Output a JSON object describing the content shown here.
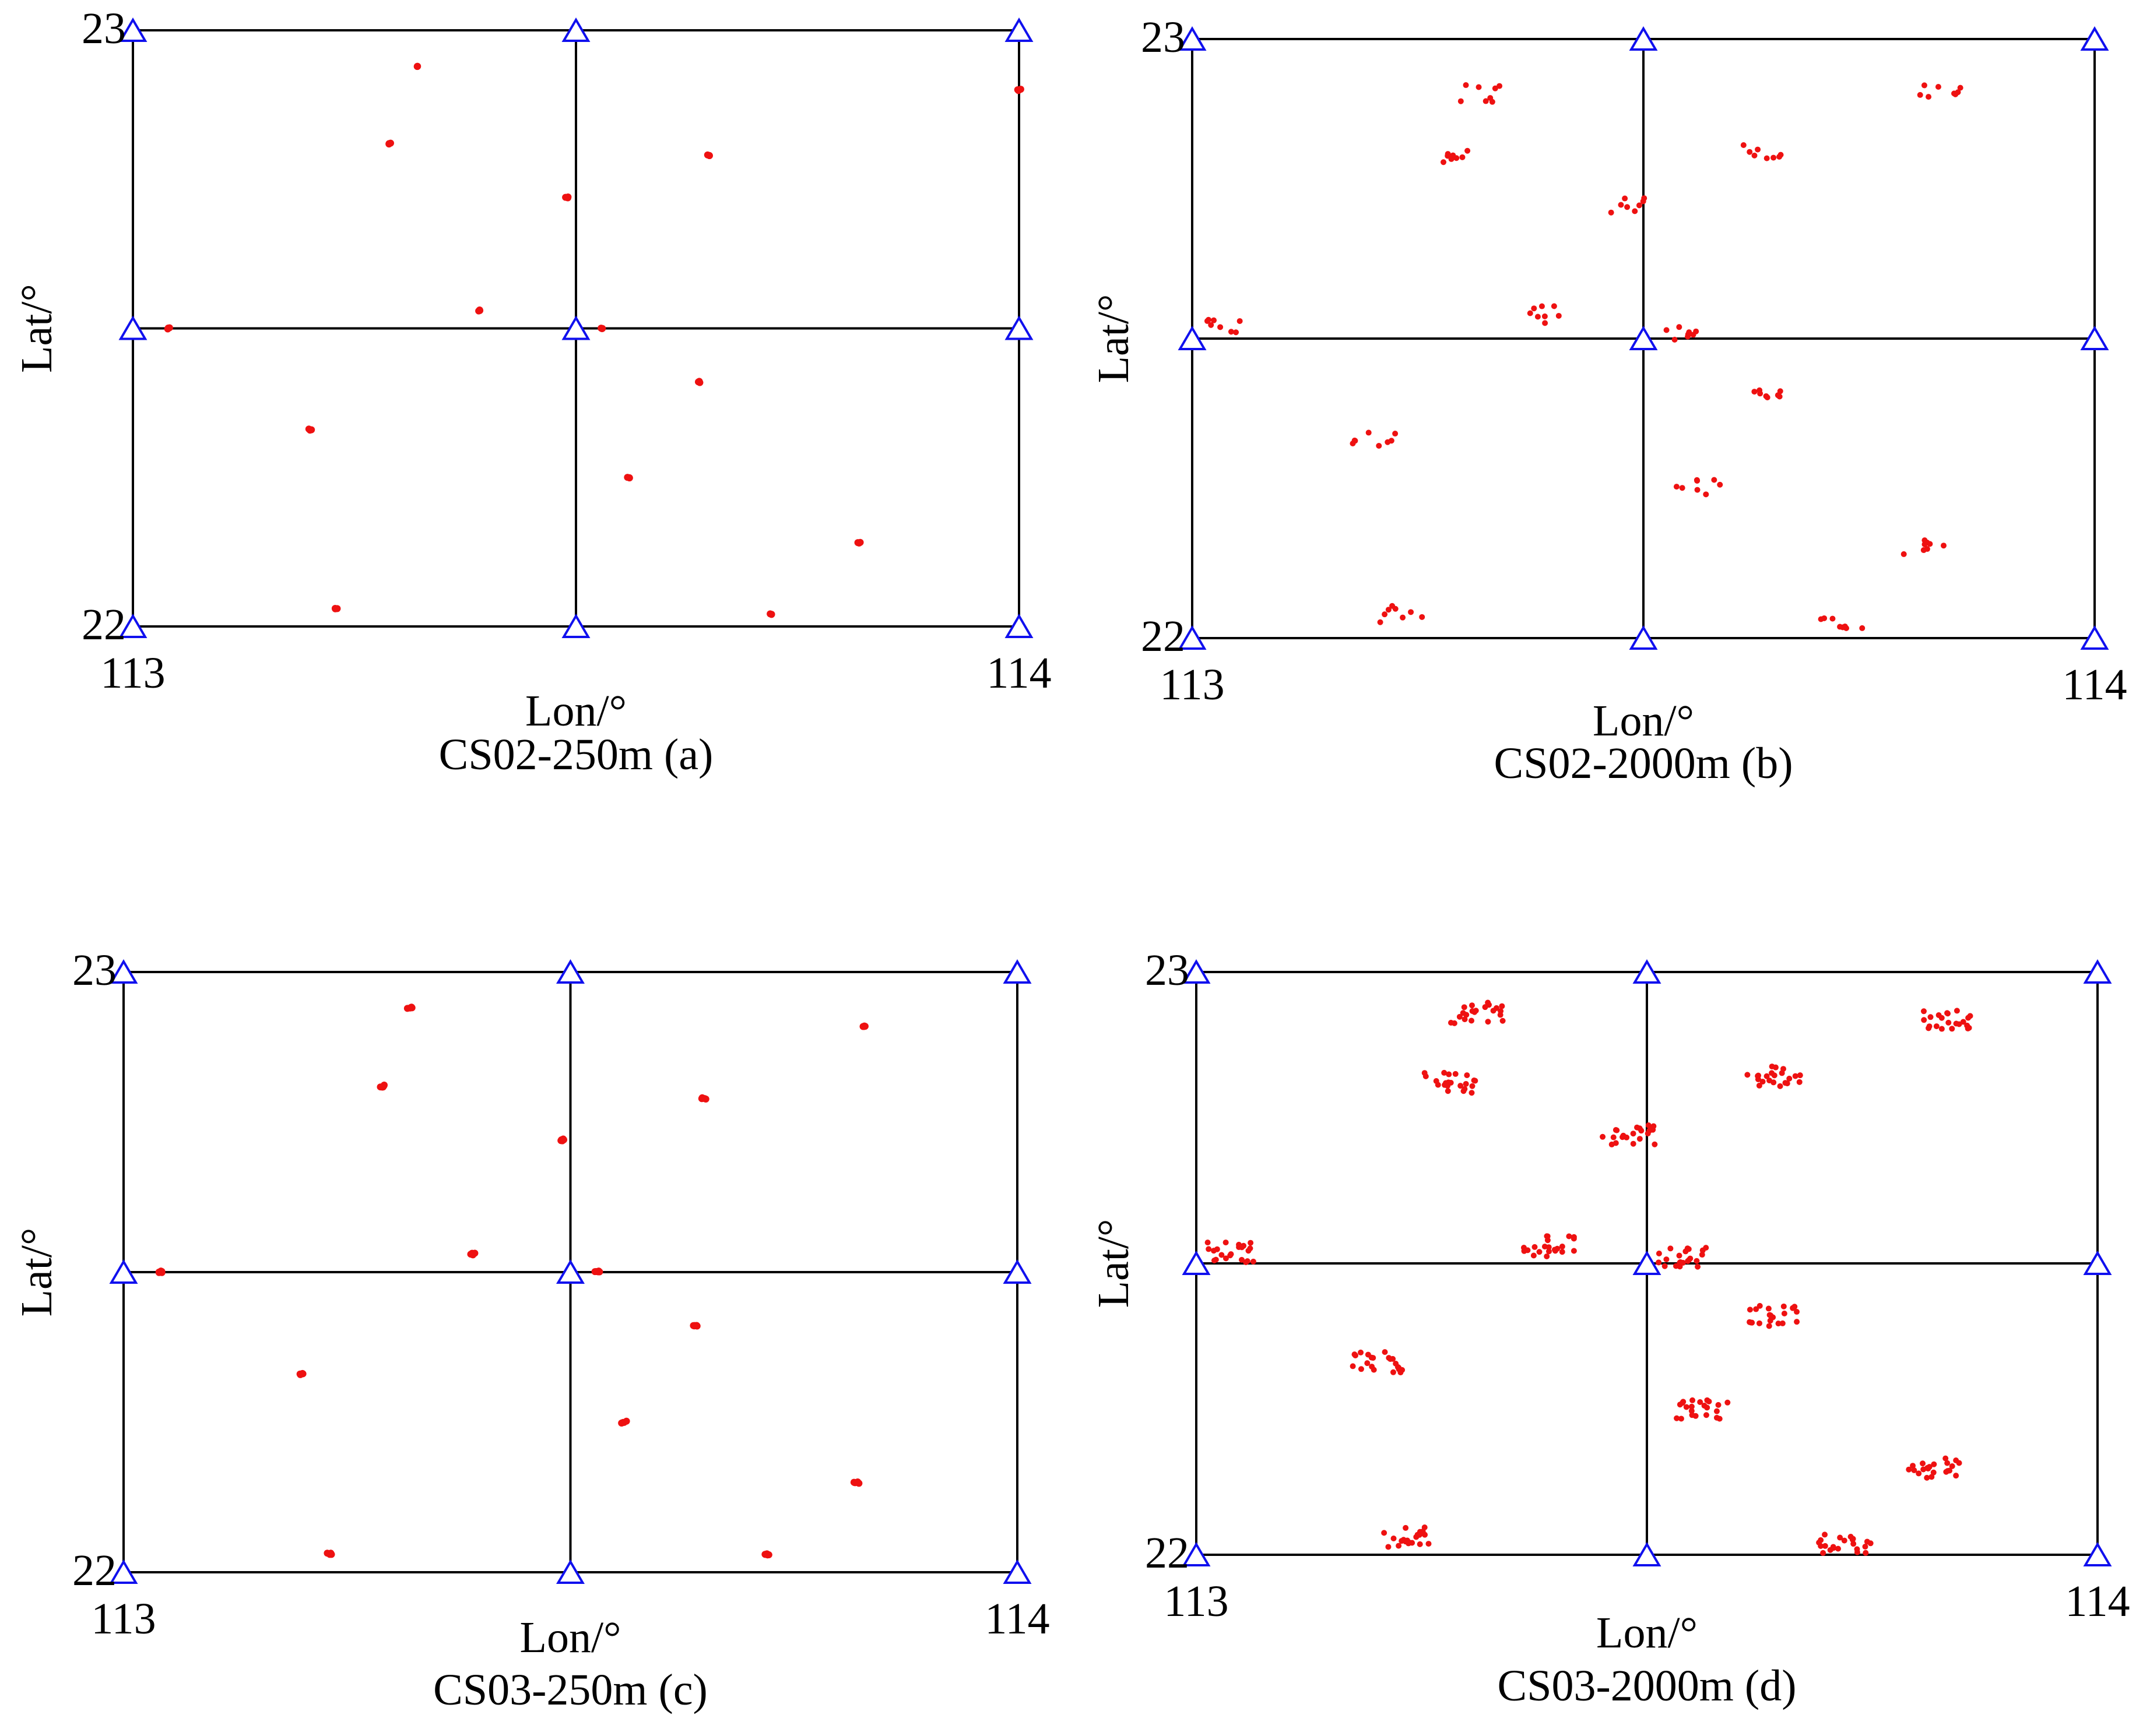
{
  "chart_data": [
    {
      "type": "scatter",
      "caption": "CS02-250m (a)",
      "xlabel": "Lon/°",
      "ylabel": "Lat/°",
      "xlim": [
        113,
        114
      ],
      "ylim": [
        22,
        23
      ],
      "xticks": [
        "113",
        "114"
      ],
      "yticks": [
        "22",
        "23"
      ],
      "grid_lines_lon": [
        113,
        113.5,
        114
      ],
      "grid_lines_lat": [
        22,
        22.5,
        23
      ],
      "stations": [
        [
          113,
          23
        ],
        [
          113.5,
          23
        ],
        [
          114,
          23
        ],
        [
          113,
          22.5
        ],
        [
          113.5,
          22.5
        ],
        [
          114,
          22.5
        ],
        [
          113,
          22
        ],
        [
          113.5,
          22
        ],
        [
          114,
          22
        ]
      ],
      "spread": 0.002,
      "count": 3,
      "clusters": [
        [
          113.32,
          22.94
        ],
        [
          113.29,
          22.81
        ],
        [
          113.49,
          22.72
        ],
        [
          113.04,
          22.5
        ],
        [
          113.39,
          22.53
        ],
        [
          113.53,
          22.5
        ],
        [
          113.65,
          22.79
        ],
        [
          114.0,
          22.9
        ],
        [
          113.2,
          22.33
        ],
        [
          113.64,
          22.41
        ],
        [
          113.56,
          22.25
        ],
        [
          113.82,
          22.14
        ],
        [
          113.23,
          22.03
        ],
        [
          113.72,
          22.02
        ]
      ]
    },
    {
      "type": "scatter",
      "caption": "CS02-2000m (b)",
      "xlabel": "Lon/°",
      "ylabel": "Lat/°",
      "xlim": [
        113,
        114
      ],
      "ylim": [
        22,
        23
      ],
      "xticks": [
        "113",
        "114"
      ],
      "yticks": [
        "22",
        "23"
      ],
      "grid_lines_lon": [
        113,
        113.5,
        114
      ],
      "grid_lines_lat": [
        22,
        22.5,
        23
      ],
      "stations": [
        [
          113,
          23
        ],
        [
          113.5,
          23
        ],
        [
          114,
          23
        ],
        [
          113,
          22.5
        ],
        [
          113.5,
          22.5
        ],
        [
          114,
          22.5
        ],
        [
          113,
          22
        ],
        [
          113.5,
          22
        ],
        [
          114,
          22
        ]
      ],
      "spread": 0.025,
      "count": 8,
      "clusters": [
        [
          113.32,
          22.91
        ],
        [
          113.29,
          22.8
        ],
        [
          113.48,
          22.72
        ],
        [
          113.04,
          22.52
        ],
        [
          113.39,
          22.54
        ],
        [
          113.54,
          22.51
        ],
        [
          113.63,
          22.81
        ],
        [
          113.83,
          22.91
        ],
        [
          113.2,
          22.33
        ],
        [
          113.64,
          22.41
        ],
        [
          113.56,
          22.25
        ],
        [
          113.81,
          22.15
        ],
        [
          113.23,
          22.04
        ],
        [
          113.72,
          22.03
        ]
      ]
    },
    {
      "type": "scatter",
      "caption": "CS03-250m (c)",
      "xlabel": "Lon/°",
      "ylabel": "Lat/°",
      "xlim": [
        113,
        114
      ],
      "ylim": [
        22,
        23
      ],
      "xticks": [
        "113",
        "114"
      ],
      "yticks": [
        "22",
        "23"
      ],
      "grid_lines_lon": [
        113,
        113.5,
        114
      ],
      "grid_lines_lat": [
        22,
        22.5,
        23
      ],
      "stations": [
        [
          113,
          23
        ],
        [
          113.5,
          23
        ],
        [
          114,
          23
        ],
        [
          113,
          22.5
        ],
        [
          113.5,
          22.5
        ],
        [
          114,
          22.5
        ],
        [
          113,
          22
        ],
        [
          113.5,
          22
        ],
        [
          114,
          22
        ]
      ],
      "spread": 0.003,
      "count": 5,
      "clusters": [
        [
          113.32,
          22.94
        ],
        [
          113.29,
          22.81
        ],
        [
          113.49,
          22.72
        ],
        [
          113.04,
          22.5
        ],
        [
          113.39,
          22.53
        ],
        [
          113.53,
          22.5
        ],
        [
          113.65,
          22.79
        ],
        [
          113.83,
          22.91
        ],
        [
          113.2,
          22.33
        ],
        [
          113.64,
          22.41
        ],
        [
          113.56,
          22.25
        ],
        [
          113.82,
          22.15
        ],
        [
          113.23,
          22.03
        ],
        [
          113.72,
          22.03
        ]
      ]
    },
    {
      "type": "scatter",
      "caption": "CS03-2000m (d)",
      "xlabel": "Lon/°",
      "ylabel": "Lat/°",
      "xlim": [
        113,
        114
      ],
      "ylim": [
        22,
        23
      ],
      "xticks": [
        "113",
        "114"
      ],
      "yticks": [
        "22",
        "23"
      ],
      "grid_lines_lon": [
        113,
        113.5,
        114
      ],
      "grid_lines_lat": [
        22,
        22.5,
        23
      ],
      "stations": [
        [
          113,
          23
        ],
        [
          113.5,
          23
        ],
        [
          114,
          23
        ],
        [
          113,
          22.5
        ],
        [
          113.5,
          22.5
        ],
        [
          114,
          22.5
        ],
        [
          113,
          22
        ],
        [
          113.5,
          22
        ],
        [
          114,
          22
        ]
      ],
      "spread": 0.03,
      "count": 22,
      "clusters": [
        [
          113.31,
          22.93
        ],
        [
          113.28,
          22.81
        ],
        [
          113.48,
          22.72
        ],
        [
          113.04,
          22.52
        ],
        [
          113.39,
          22.53
        ],
        [
          113.54,
          22.51
        ],
        [
          113.64,
          22.82
        ],
        [
          113.83,
          22.92
        ],
        [
          113.2,
          22.33
        ],
        [
          113.64,
          22.41
        ],
        [
          113.56,
          22.25
        ],
        [
          113.82,
          22.15
        ],
        [
          113.23,
          22.03
        ],
        [
          113.72,
          22.02
        ]
      ]
    }
  ]
}
